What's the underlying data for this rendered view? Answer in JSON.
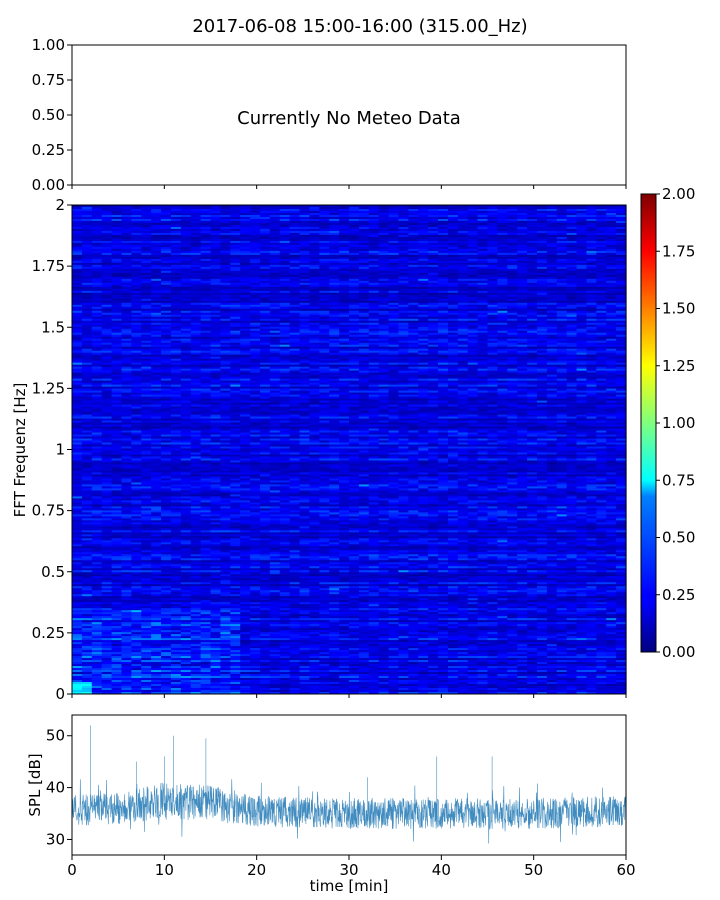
{
  "title": "2017-06-08 15:00-16:00 (315.00_Hz)",
  "chart_data": [
    {
      "type": "line",
      "panel": "meteo",
      "title": "",
      "annotation": "Currently No Meteo Data",
      "ylim": [
        0,
        1
      ],
      "yticks": [
        "0.00",
        "0.25",
        "0.50",
        "0.75",
        "1.00"
      ],
      "xlim": [
        0,
        60
      ],
      "xticks_labels_shown": false,
      "series": []
    },
    {
      "type": "heatmap",
      "panel": "spectrogram",
      "ylabel": "FFT Frequenz [Hz]",
      "ylim": [
        0,
        2
      ],
      "yticks": [
        "0",
        "0.25",
        "0.5",
        "0.75",
        "1",
        "1.25",
        "1.5",
        "1.75",
        "2"
      ],
      "xlim": [
        0,
        60
      ],
      "value_range": [
        0,
        2
      ],
      "colormap": "jet",
      "typical_value": 0.2,
      "low_frequency_peak_value": 0.6,
      "colorbar": {
        "range": [
          0,
          2
        ],
        "ticks": [
          "0.00",
          "0.25",
          "0.50",
          "0.75",
          "1.00",
          "1.25",
          "1.50",
          "1.75",
          "2.00"
        ]
      }
    },
    {
      "type": "line",
      "panel": "spl",
      "xlabel": "time [min]",
      "ylabel": "SPL [dB]",
      "xlim": [
        0,
        60
      ],
      "ylim": [
        27,
        54
      ],
      "xticks": [
        "0",
        "10",
        "20",
        "30",
        "40",
        "50",
        "60"
      ],
      "yticks": [
        "30",
        "40",
        "50"
      ],
      "color": "#1f77b4",
      "envelope": {
        "x": [
          0,
          5,
          10,
          15,
          20,
          30,
          40,
          50,
          60
        ],
        "center": [
          35.5,
          36,
          37.5,
          37,
          35.5,
          35,
          35,
          35,
          35.5
        ],
        "halfwidth": [
          3,
          3,
          3.5,
          3.5,
          3,
          3,
          3,
          3,
          3
        ]
      },
      "spikes": [
        {
          "x": 2,
          "y": 52
        },
        {
          "x": 7,
          "y": 45
        },
        {
          "x": 10,
          "y": 46
        },
        {
          "x": 11,
          "y": 50
        },
        {
          "x": 14.5,
          "y": 49.5
        },
        {
          "x": 32,
          "y": 42
        },
        {
          "x": 39.5,
          "y": 46
        },
        {
          "x": 45.5,
          "y": 46
        }
      ]
    }
  ]
}
